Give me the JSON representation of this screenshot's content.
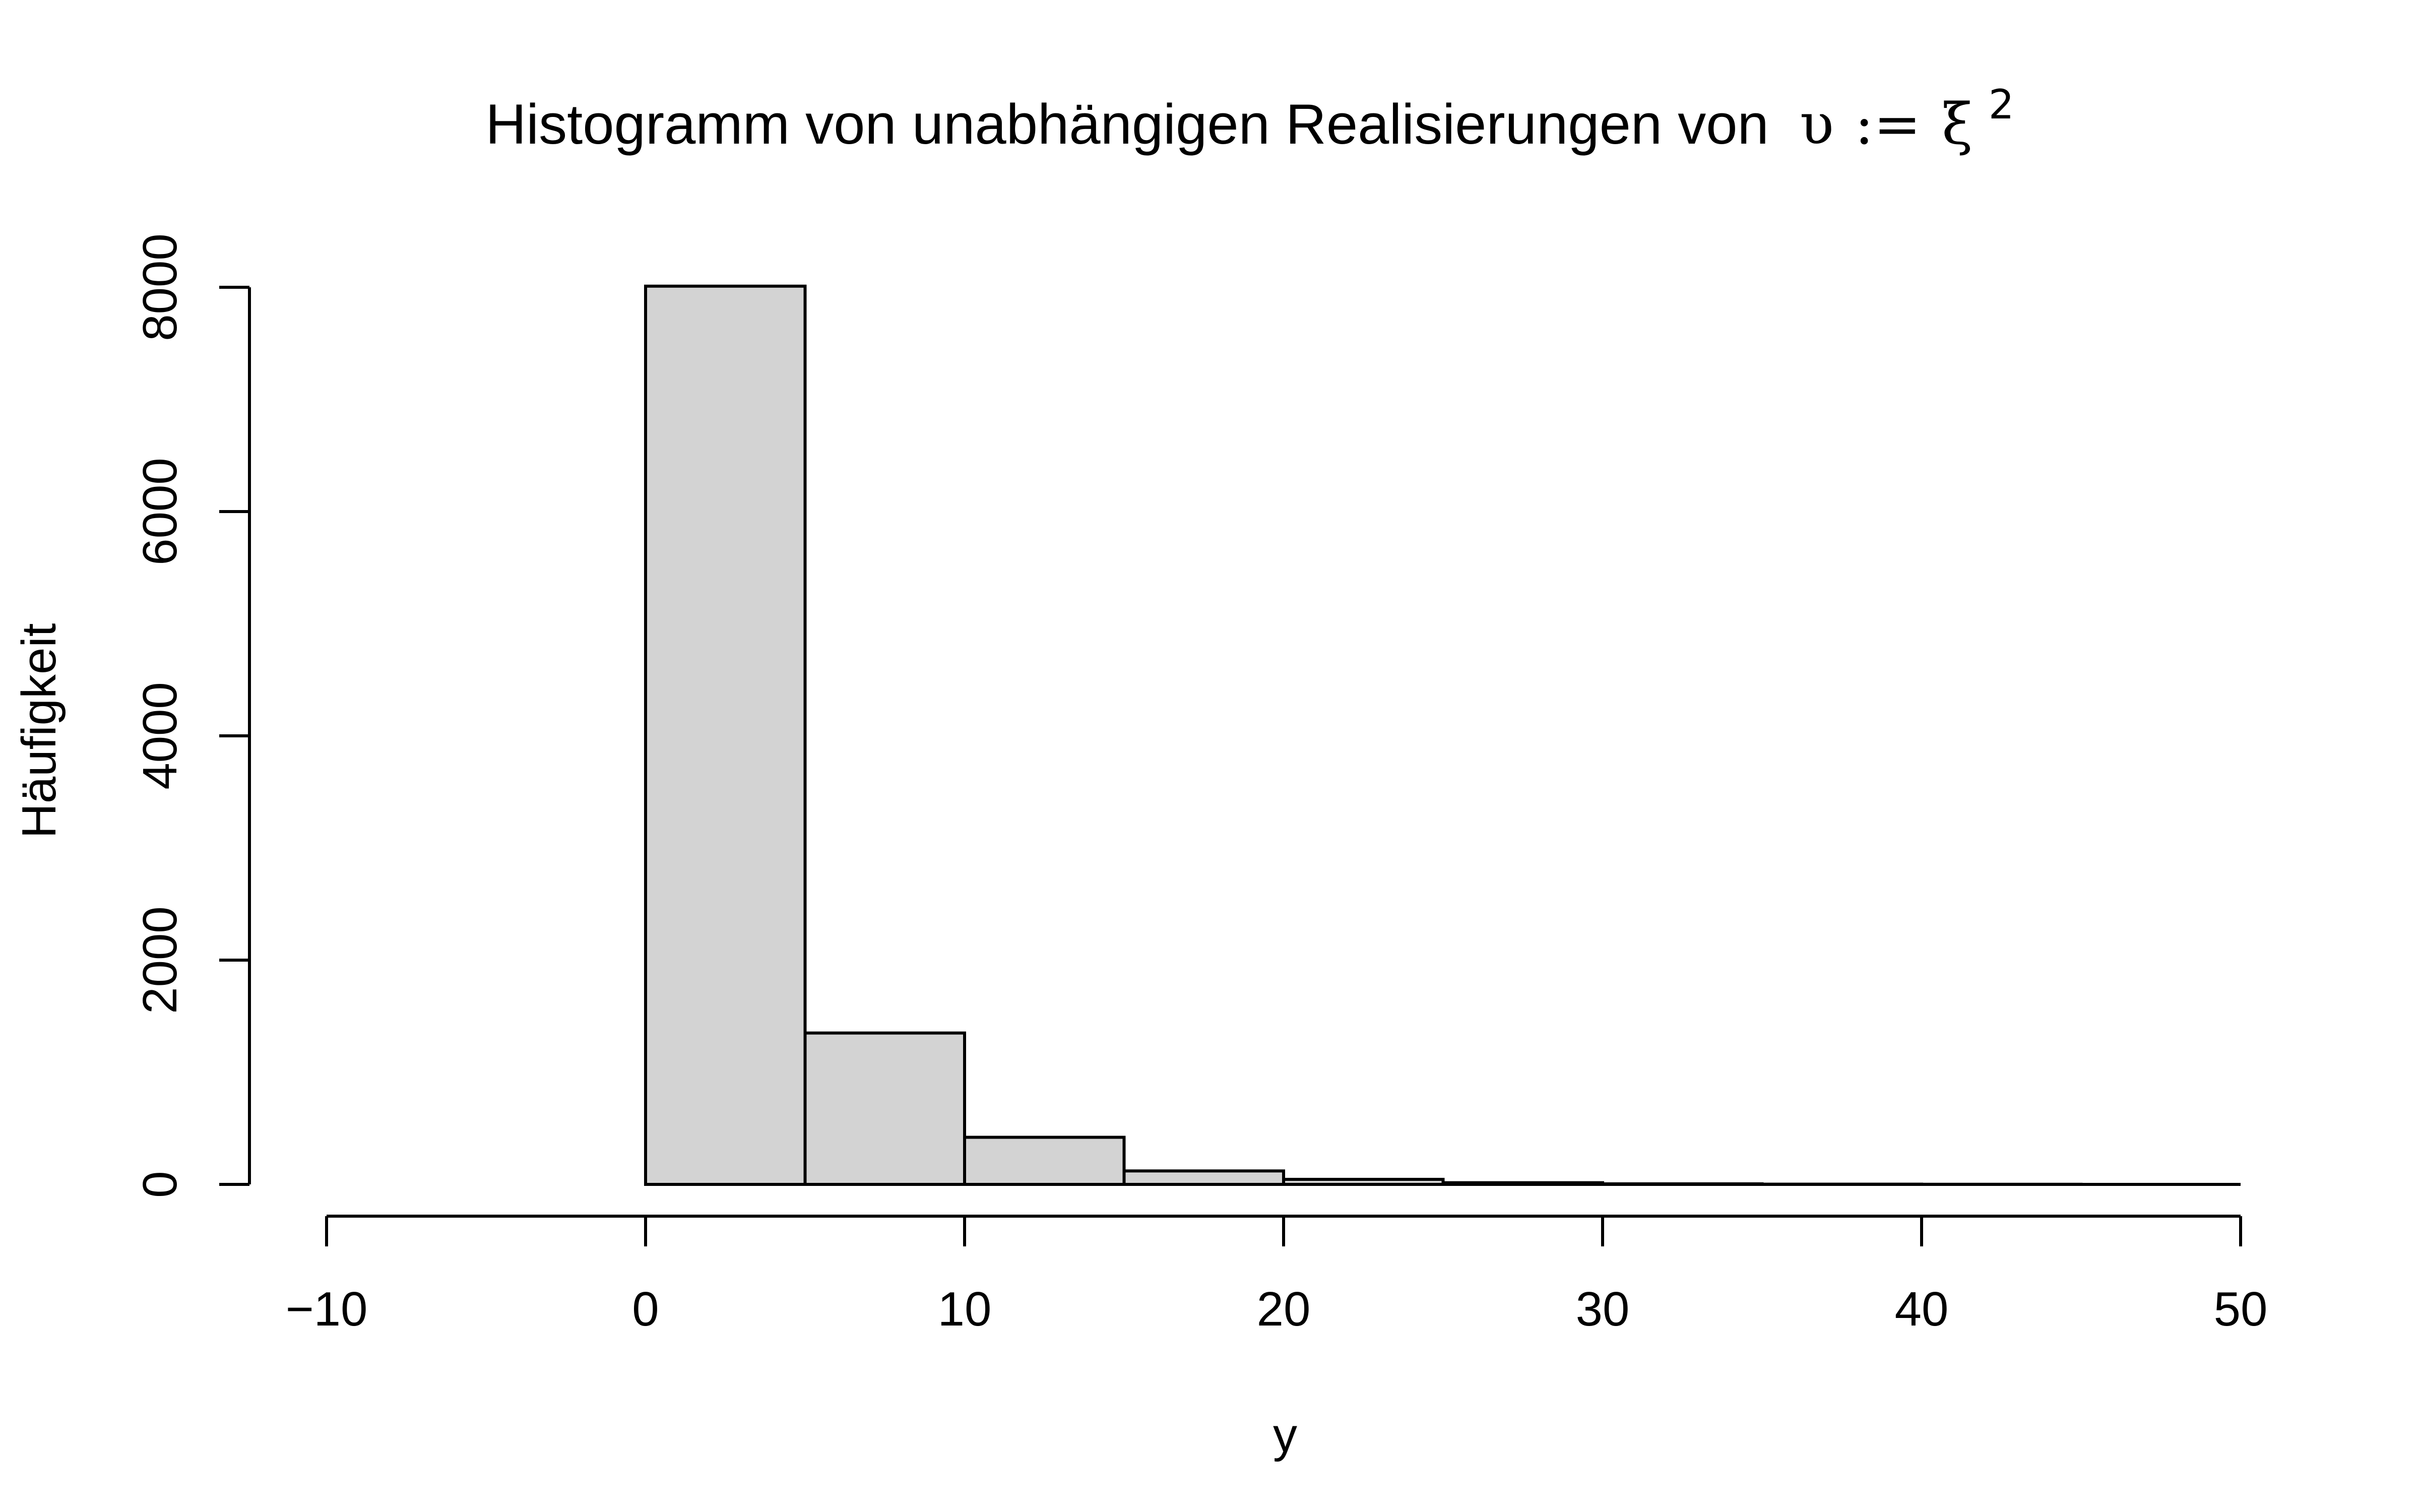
{
  "chart_data": {
    "type": "bar",
    "title": "Histogramm von unabhängigen Realisierungen von",
    "title_math": {
      "symbol": "υ",
      "assign": ":=",
      "var": "ξ",
      "sup": "2"
    },
    "xlabel": "y",
    "ylabel": "Häufigkeit",
    "xlim": [
      -12,
      53
    ],
    "ylim": [
      0,
      8000
    ],
    "x_ticks": [
      -10,
      0,
      10,
      20,
      30,
      40,
      50
    ],
    "x_tick_labels": [
      "−10",
      "0",
      "10",
      "20",
      "30",
      "40",
      "50"
    ],
    "y_ticks": [
      0,
      2000,
      4000,
      6000,
      8000
    ],
    "y_tick_labels": [
      "0",
      "2000",
      "4000",
      "6000",
      "8000"
    ],
    "bin_edges": [
      0,
      5,
      10,
      15,
      20,
      25,
      30,
      35,
      40,
      45,
      50
    ],
    "values": [
      8010,
      1350,
      420,
      120,
      45,
      15,
      5,
      2,
      1,
      0
    ],
    "bar_color": "#d3d3d3",
    "grid": false
  }
}
